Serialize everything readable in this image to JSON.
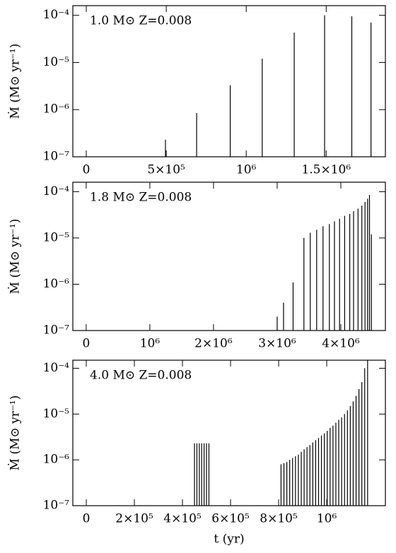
{
  "chart_data": [
    {
      "type": "spikes",
      "annotation": "1.0 M⊙  Z=0.008",
      "ylabel": "Ṁ (M⊙ yr⁻¹)",
      "color": "#000000",
      "log_y": true,
      "x": [
        495000,
        690000,
        900000,
        1100000,
        1300000,
        1490000,
        1660000,
        1780000
      ],
      "values": [
        2.3e-07,
        8.5e-07,
        3.3e-06,
        1.2e-05,
        4.3e-05,
        0.0001,
        9.5e-05,
        7e-05
      ],
      "xlim": [
        -84000,
        1870000
      ],
      "ylim": [
        1e-07,
        0.00016
      ],
      "xticks": [
        0,
        {
          "value": 500000,
          "label": "5×10⁵"
        },
        {
          "value": 1000000,
          "label": "10⁶"
        },
        {
          "value": 1500000,
          "label": "1.5×10⁶"
        }
      ],
      "yticks": [
        {
          "value": 1e-07,
          "label": "10⁻⁷"
        },
        {
          "value": 1e-06,
          "label": "10⁻⁶"
        },
        {
          "value": 1e-05,
          "label": "10⁻⁵"
        },
        {
          "value": 0.0001,
          "label": "10⁻⁴"
        }
      ]
    },
    {
      "type": "spikes",
      "annotation": "1.8 M⊙  Z=0.008",
      "ylabel": "Ṁ (M⊙ yr⁻¹)",
      "color": "#000000",
      "log_y": true,
      "x": [
        3000000,
        3100000,
        3250000,
        3420000,
        3520000,
        3620000,
        3720000,
        3820000,
        3900000,
        3980000,
        4060000,
        4140000,
        4200000,
        4270000,
        4330000,
        4380000,
        4420000,
        4450000,
        4480000
      ],
      "values": [
        2e-07,
        4e-07,
        1.1e-06,
        1e-05,
        1.3e-05,
        1.5e-05,
        1.8e-05,
        2e-05,
        2.3e-05,
        2.6e-05,
        3e-05,
        3.3e-05,
        3.8e-05,
        4.3e-05,
        5e-05,
        6e-05,
        7e-05,
        8.5e-05,
        1.2e-05
      ],
      "xlim": [
        -210000,
        4700000
      ],
      "ylim": [
        1e-07,
        0.00016
      ],
      "xticks": [
        0,
        {
          "value": 1000000,
          "label": "10⁶"
        },
        {
          "value": 2000000,
          "label": "2×10⁶"
        },
        {
          "value": 3000000,
          "label": "3×10⁶"
        },
        {
          "value": 4000000,
          "label": "4×10⁶"
        }
      ],
      "yticks": [
        {
          "value": 1e-07,
          "label": "10⁻⁷"
        },
        {
          "value": 1e-06,
          "label": "10⁻⁶"
        },
        {
          "value": 1e-05,
          "label": "10⁻⁵"
        },
        {
          "value": 0.0001,
          "label": "10⁻⁴"
        }
      ]
    },
    {
      "type": "spikes",
      "annotation": "4.0 M⊙  Z=0.008",
      "ylabel": "Ṁ (M⊙ yr⁻¹)",
      "xlabel": "t (yr)",
      "color": "#000000",
      "log_y": true,
      "x": [
        450000,
        460000,
        470000,
        480000,
        490000,
        500000,
        510000,
        810000,
        822000,
        834000,
        846000,
        858000,
        870000,
        882000,
        894000,
        906000,
        918000,
        930000,
        942000,
        954000,
        966000,
        978000,
        990000,
        1002000,
        1014000,
        1026000,
        1038000,
        1050000,
        1062000,
        1074000,
        1086000,
        1098000,
        1110000,
        1122000,
        1134000,
        1146000,
        1158000,
        1170000
      ],
      "values": [
        2.3e-06,
        2.3e-06,
        2.3e-06,
        2.3e-06,
        2.3e-06,
        2.3e-06,
        2.3e-06,
        8e-07,
        8.5e-07,
        9e-07,
        1e-06,
        1.1e-06,
        1.2e-06,
        1.3e-06,
        1.5e-06,
        1.7e-06,
        1.9e-06,
        2.1e-06,
        2.4e-06,
        2.7e-06,
        3e-06,
        3.4e-06,
        3.8e-06,
        4.3e-06,
        5e-06,
        5.6e-06,
        6.5e-06,
        7.5e-06,
        8.5e-06,
        1e-05,
        1.2e-05,
        1.5e-05,
        1.9e-05,
        2.5e-05,
        3.5e-05,
        5e-05,
        0.0001,
        0.0002
      ],
      "xlim": [
        -56000,
        1244000
      ],
      "ylim": [
        1e-07,
        0.00015
      ],
      "xticks": [
        0,
        {
          "value": 200000,
          "label": "2×10⁵"
        },
        {
          "value": 400000,
          "label": "4×10⁵"
        },
        {
          "value": 600000,
          "label": "6×10⁵"
        },
        {
          "value": 800000,
          "label": "8×10⁵"
        },
        {
          "value": 1000000,
          "label": "10⁶"
        }
      ],
      "yticks": [
        {
          "value": 1e-07,
          "label": "10⁻⁷"
        },
        {
          "value": 1e-06,
          "label": "10⁻⁶"
        },
        {
          "value": 1e-05,
          "label": "10⁻⁵"
        },
        {
          "value": 0.0001,
          "label": "10⁻⁴"
        }
      ]
    }
  ]
}
